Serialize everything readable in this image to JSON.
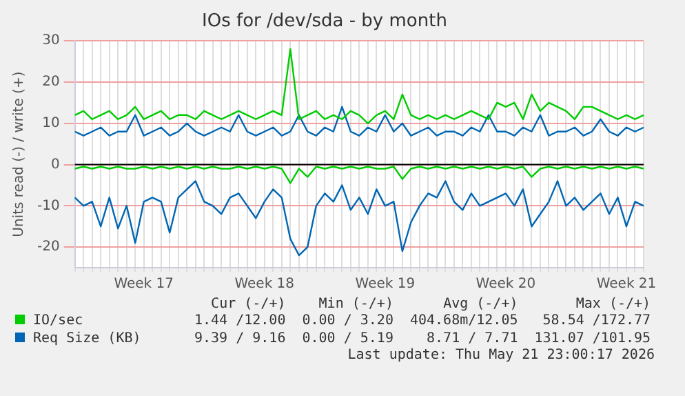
{
  "chart_data": {
    "type": "line",
    "title": "IOs for /dev/sda - by month",
    "ylabel": "Units read (-) / write (+)",
    "categories": [
      null,
      null,
      null,
      null,
      null,
      null,
      null,
      null,
      "Week 17",
      null,
      null,
      null,
      null,
      null,
      null,
      null,
      null,
      null,
      null,
      null,
      null,
      null,
      "Week 18",
      null,
      null,
      null,
      null,
      null,
      null,
      null,
      null,
      null,
      null,
      null,
      null,
      null,
      "Week 19",
      null,
      null,
      null,
      null,
      null,
      null,
      null,
      null,
      null,
      null,
      null,
      null,
      null,
      "Week 20",
      null,
      null,
      null,
      null,
      null,
      null,
      null,
      null,
      null,
      null,
      null,
      null,
      null,
      "Week 21",
      null,
      null
    ],
    "series": [
      {
        "name": "IO/sec",
        "color": "#00cc00",
        "values": [
          12,
          13,
          11,
          12,
          13,
          11,
          12,
          14,
          11,
          12,
          13,
          11,
          12,
          12,
          11,
          13,
          12,
          11,
          12,
          13,
          12,
          11,
          12,
          13,
          12,
          28,
          11,
          12,
          13,
          11,
          12,
          11,
          13,
          12,
          10,
          12,
          13,
          11,
          17,
          12,
          11,
          12,
          11,
          12,
          11,
          12,
          13,
          12,
          11,
          15,
          14,
          15,
          11,
          17,
          13,
          15,
          14,
          13,
          11,
          14,
          14,
          13,
          12,
          11,
          12,
          11,
          12
        ]
      },
      {
        "color": "#00cc00",
        "values": [
          -1,
          -0.5,
          -1,
          -0.5,
          -1,
          -0.5,
          -1,
          -1,
          -0.5,
          -1,
          -0.5,
          -1,
          -0.5,
          -1,
          -0.5,
          -1,
          -0.5,
          -1,
          -1,
          -0.5,
          -1,
          -0.5,
          -1,
          -0.5,
          -1,
          -4.5,
          -1,
          -3,
          -0.5,
          -1,
          -0.5,
          -1,
          -0.5,
          -1,
          -0.5,
          -1,
          -1,
          -0.5,
          -3.5,
          -1,
          -0.5,
          -1,
          -0.5,
          -1,
          -0.5,
          -1,
          -0.5,
          -1,
          -0.5,
          -1,
          -0.5,
          -1,
          -0.5,
          -3,
          -1,
          -0.5,
          -1,
          -0.5,
          -1,
          -0.5,
          -1,
          -0.5,
          -1,
          -0.5,
          -1,
          -0.5,
          -1
        ]
      },
      {
        "name": "Req Size (KB)",
        "color": "#0066b3",
        "values": [
          8,
          7,
          8,
          9,
          7,
          8,
          8,
          12,
          7,
          8,
          9,
          7,
          8,
          10,
          8,
          7,
          8,
          9,
          8,
          12,
          8,
          7,
          8,
          9,
          7,
          8,
          12,
          8,
          7,
          9,
          8,
          14,
          8,
          7,
          9,
          8,
          12,
          8,
          10,
          7,
          8,
          9,
          7,
          8,
          8,
          7,
          9,
          8,
          12,
          8,
          8,
          7,
          9,
          8,
          12,
          7,
          8,
          8,
          9,
          7,
          8,
          11,
          8,
          7,
          9,
          8,
          9
        ]
      },
      {
        "color": "#0066b3",
        "values": [
          -8,
          -10,
          -9,
          -15,
          -8,
          -15.5,
          -10,
          -19,
          -9,
          -8,
          -9,
          -16.5,
          -8,
          -6,
          -4,
          -9,
          -10,
          -12,
          -8,
          -7,
          -10,
          -13,
          -9,
          -6,
          -8,
          -18,
          -22,
          -20,
          -10,
          -7,
          -9,
          -5,
          -11,
          -8,
          -12,
          -6,
          -10,
          -9,
          -21,
          -14,
          -10,
          -7,
          -8,
          -4,
          -9,
          -11,
          -7,
          -10,
          -9,
          -8,
          -7,
          -10,
          -6,
          -15,
          -12,
          -9,
          -4,
          -10,
          -8,
          -11,
          -9,
          -7,
          -12,
          -8,
          -15,
          -9,
          -10
        ]
      }
    ],
    "ylim": [
      -25,
      30
    ],
    "yticks": [
      -20,
      -10,
      0,
      10,
      20,
      30
    ],
    "grid": true,
    "legend": "bottom",
    "marker": "none",
    "line_style": "solid",
    "annotations": [
      "Cur (-/+)",
      "Min (-/+)",
      "Avg (-/+)",
      "Max (-/+)",
      "1.44 /12.00",
      "0.00 / 3.20",
      "404.68m/12.05",
      "58.54 /172.77",
      "9.39 / 9.16",
      "0.00 / 5.19",
      "8.71 / 7.71",
      "131.07 /101.95",
      "Last update: Thu May 21 23:00:17 2026"
    ]
  }
}
